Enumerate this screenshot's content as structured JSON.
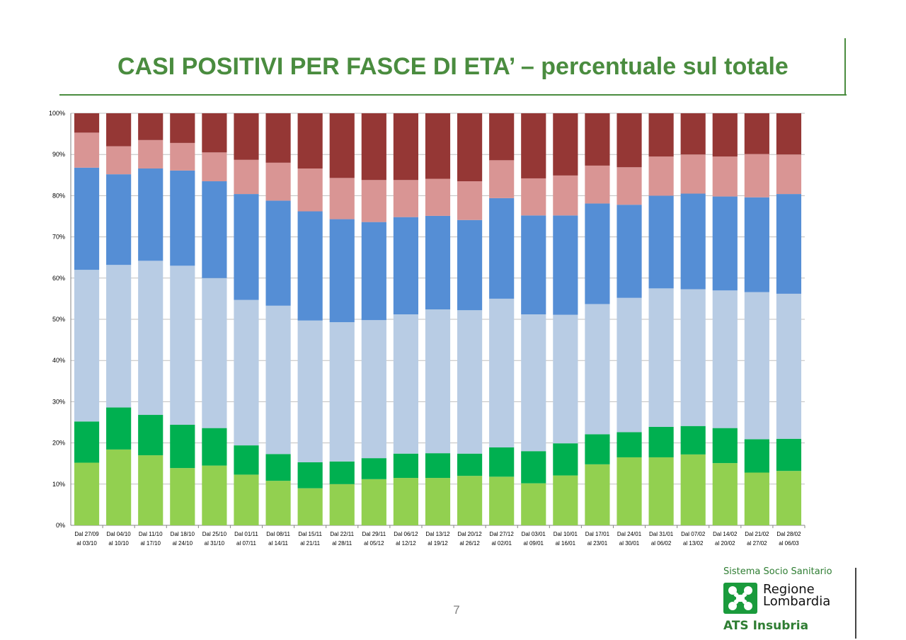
{
  "page": {
    "title": "CASI POSITIVI PER FASCE DI ETA’ – percentuale sul totale",
    "page_number": "7",
    "accent_color": "#4a8c3f"
  },
  "logo": {
    "top_text": "Sistema Socio Sanitario",
    "region_line1": "Regione",
    "region_line2": "Lombardia",
    "bottom_text": "ATS Insubria",
    "mark_color": "#1a9b3c",
    "icon": "regione-lombardia-cross-icon"
  },
  "chart_data": {
    "type": "bar",
    "stacked": true,
    "ylim": [
      0,
      100
    ],
    "yticks": [
      "0%",
      "10%",
      "20%",
      "30%",
      "40%",
      "50%",
      "60%",
      "70%",
      "80%",
      "90%",
      "100%"
    ],
    "grid": true,
    "legend": "none",
    "categories": [
      [
        "Dal 27/09",
        "al 03/10"
      ],
      [
        "Dal 04/10",
        "al 10/10"
      ],
      [
        "Dal 11/10",
        "al 17/10"
      ],
      [
        "Dal 18/10",
        "al 24/10"
      ],
      [
        "Dal 25/10",
        "al 31/10"
      ],
      [
        "Dal 01/11",
        "al 07/11"
      ],
      [
        "Dal 08/11",
        "al 14/11"
      ],
      [
        "Dal 15/11",
        "al 21/11"
      ],
      [
        "Dal 22/11",
        "al 28/11"
      ],
      [
        "Dal 29/11",
        "al 05/12"
      ],
      [
        "Dal 06/12",
        "al 12/12"
      ],
      [
        "Dal 13/12",
        "al 19/12"
      ],
      [
        "Dal 20/12",
        "al 26/12"
      ],
      [
        "Dal 27/12",
        "al 02/01"
      ],
      [
        "Dal 03/01",
        "al 09/01"
      ],
      [
        "Dal 10/01",
        "al 16/01"
      ],
      [
        "Dal 17/01",
        "al 23/01"
      ],
      [
        "Dal 24/01",
        "al 30/01"
      ],
      [
        "Dal 31/01",
        "al 06/02"
      ],
      [
        "Dal 07/02",
        "al 13/02"
      ],
      [
        "Dal 14/02",
        "al 20/02"
      ],
      [
        "Dal 21/02",
        "al 27/02"
      ],
      [
        "Dal 28/02",
        "al 06/03"
      ]
    ],
    "series": [
      {
        "color": "#92d050",
        "values": [
          15.2,
          18.4,
          17.0,
          13.9,
          14.5,
          12.3,
          10.8,
          9.0,
          10.0,
          11.2,
          11.5,
          11.5,
          12.0,
          11.8,
          10.2,
          12.1,
          14.8,
          16.5,
          16.5,
          17.2,
          15.1,
          12.8,
          13.2
        ]
      },
      {
        "color": "#00b050",
        "values": [
          10.0,
          10.2,
          9.8,
          10.5,
          9.1,
          7.1,
          6.5,
          6.3,
          5.5,
          5.1,
          5.9,
          6.0,
          5.4,
          7.1,
          7.8,
          7.8,
          7.3,
          6.1,
          7.4,
          6.9,
          8.5,
          8.1,
          7.8
        ]
      },
      {
        "color": "#b8cce4",
        "values": [
          36.8,
          34.6,
          37.4,
          38.6,
          36.4,
          35.3,
          36.0,
          34.4,
          33.8,
          33.5,
          33.8,
          34.9,
          34.8,
          36.1,
          33.2,
          31.2,
          31.6,
          32.6,
          33.6,
          33.2,
          33.4,
          35.7,
          35.2
        ]
      },
      {
        "color": "#558ed5",
        "values": [
          24.8,
          22.0,
          22.4,
          23.1,
          23.5,
          25.7,
          25.5,
          26.5,
          25.0,
          23.8,
          23.6,
          22.7,
          21.9,
          24.4,
          24.0,
          24.1,
          24.4,
          22.6,
          22.5,
          23.2,
          22.8,
          23.0,
          24.2
        ]
      },
      {
        "color": "#d99594",
        "values": [
          8.5,
          6.8,
          6.9,
          6.7,
          7.0,
          8.3,
          9.2,
          10.4,
          10.0,
          10.2,
          9.0,
          9.0,
          9.4,
          9.2,
          9.0,
          9.7,
          9.2,
          9.1,
          9.5,
          9.5,
          9.7,
          10.5,
          9.6
        ]
      },
      {
        "color": "#953735",
        "values": [
          4.7,
          8.0,
          6.5,
          7.2,
          9.5,
          11.3,
          12.0,
          13.4,
          15.7,
          16.2,
          16.2,
          15.9,
          16.5,
          11.4,
          15.8,
          15.1,
          12.7,
          13.1,
          10.5,
          10.0,
          10.5,
          9.9,
          10.0
        ]
      }
    ]
  }
}
